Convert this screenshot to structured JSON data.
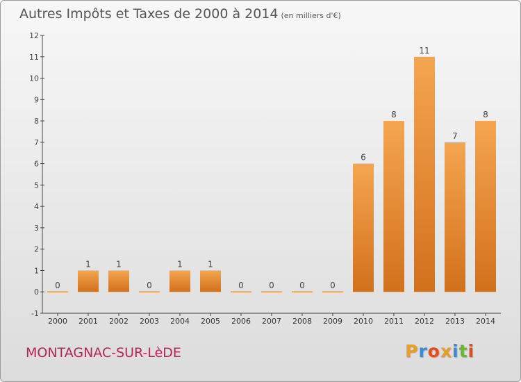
{
  "header": {
    "title": "Autres Impôts et Taxes de 2000 à 2014",
    "unit": "(en milliers d'€)"
  },
  "footer": {
    "commune": "MONTAGNAC-SUR-LèDE",
    "logo_letters": [
      "P",
      "r",
      "o",
      "x",
      "i",
      "t",
      "i"
    ],
    "logo_colors": [
      "#e8a020",
      "#3a8ad6",
      "#e84a1a",
      "#e8a020",
      "#3a8ad6",
      "#6ab82a",
      "#e84a1a"
    ]
  },
  "colors": {
    "bar_light": "#f5a550",
    "bar_dark": "#d2701c",
    "axis": "#444444",
    "grid": "#cfcfcf"
  },
  "chart_data": {
    "type": "bar",
    "categories": [
      "2000",
      "2001",
      "2002",
      "2003",
      "2004",
      "2005",
      "2006",
      "2007",
      "2008",
      "2009",
      "2010",
      "2011",
      "2012",
      "2013",
      "2014"
    ],
    "values": [
      0,
      1,
      1,
      0,
      1,
      1,
      0,
      0,
      0,
      0,
      6,
      8,
      11,
      7,
      8
    ],
    "data_labels": [
      "0",
      "1",
      "1",
      "0",
      "1",
      "1",
      "0",
      "0",
      "0",
      "0",
      "6",
      "8",
      "11",
      "7",
      "8"
    ],
    "yticks": [
      -1,
      0,
      1,
      2,
      3,
      4,
      5,
      6,
      7,
      8,
      9,
      10,
      11,
      12
    ],
    "ylim": [
      -1,
      12
    ],
    "title": "Autres Impôts et Taxes de 2000 à 2014",
    "xlabel": "",
    "ylabel": "",
    "grid": false
  }
}
